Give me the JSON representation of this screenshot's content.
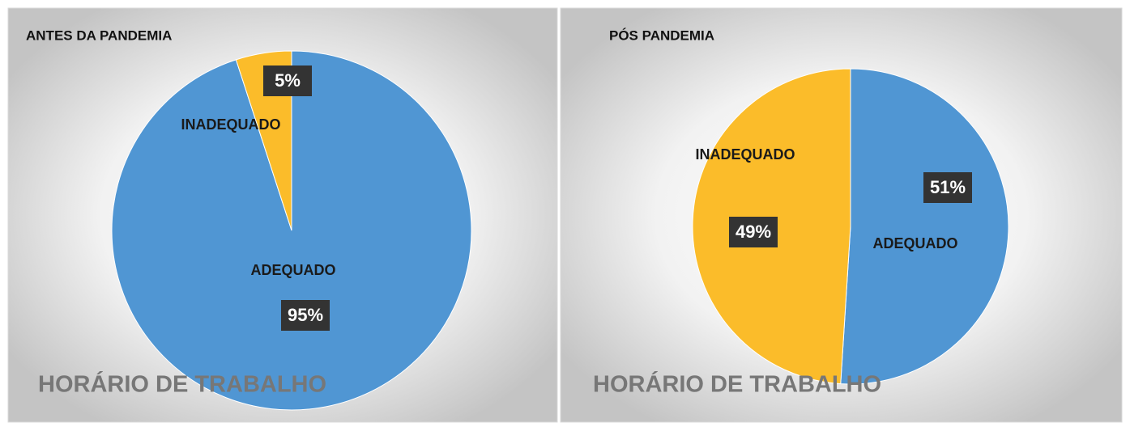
{
  "chart_data": [
    {
      "type": "pie",
      "title": "ANTES DA PANDEMIA",
      "subtitle": "HORÁRIO DE TRABALHO",
      "categories": [
        "ADEQUADO",
        "INADEQUADO"
      ],
      "values": [
        95,
        5
      ],
      "value_labels": [
        "95%",
        "5%"
      ],
      "colors": [
        "#5096d3",
        "#fbbc2a"
      ]
    },
    {
      "type": "pie",
      "title": "PÓS PANDEMIA",
      "subtitle": "HORÁRIO DE TRABALHO",
      "categories": [
        "ADEQUADO",
        "INADEQUADO"
      ],
      "values": [
        51,
        49
      ],
      "value_labels": [
        "51%",
        "49%"
      ],
      "colors": [
        "#5096d3",
        "#fbbc2a"
      ]
    }
  ]
}
